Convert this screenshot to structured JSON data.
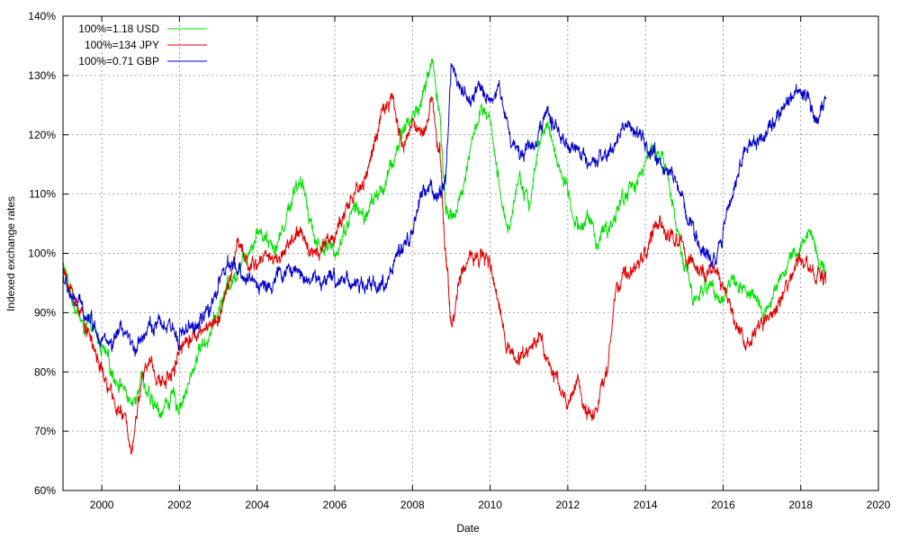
{
  "chart_data": {
    "type": "line",
    "xlabel": "Date",
    "ylabel": "Indexed exchange rates",
    "xlim": [
      1999.0,
      2020.0
    ],
    "ylim": [
      60,
      140
    ],
    "x_ticks": [
      2000,
      2002,
      2004,
      2006,
      2008,
      2010,
      2012,
      2014,
      2016,
      2018,
      2020
    ],
    "x_tick_labels": [
      "2000",
      "2002",
      "2004",
      "2006",
      "2008",
      "2010",
      "2012",
      "2014",
      "2016",
      "2018",
      "2020"
    ],
    "y_ticks": [
      60,
      70,
      80,
      90,
      100,
      110,
      120,
      130,
      140
    ],
    "y_tick_labels": [
      "60%",
      "70%",
      "80%",
      "90%",
      "100%",
      "110%",
      "120%",
      "130%",
      "140%"
    ],
    "grid": true,
    "legend_position": "top-left",
    "series": [
      {
        "name": "100%=1.18 USD",
        "color": "#00e000",
        "x": [
          1999.0,
          1999.25,
          1999.5,
          1999.75,
          2000.0,
          2000.25,
          2000.5,
          2000.8,
          2001.0,
          2001.25,
          2001.5,
          2001.8,
          2002.0,
          2002.25,
          2002.5,
          2002.75,
          2003.0,
          2003.25,
          2003.5,
          2003.75,
          2004.0,
          2004.25,
          2004.5,
          2004.75,
          2005.0,
          2005.25,
          2005.5,
          2005.75,
          2006.0,
          2006.25,
          2006.5,
          2006.75,
          2007.0,
          2007.25,
          2007.5,
          2007.75,
          2008.0,
          2008.25,
          2008.5,
          2008.7,
          2008.85,
          2009.0,
          2009.25,
          2009.5,
          2009.75,
          2010.0,
          2010.25,
          2010.5,
          2010.75,
          2011.0,
          2011.25,
          2011.5,
          2011.75,
          2012.0,
          2012.25,
          2012.5,
          2012.75,
          2013.0,
          2013.25,
          2013.5,
          2013.75,
          2014.0,
          2014.25,
          2014.5,
          2014.75,
          2015.0,
          2015.25,
          2015.5,
          2015.75,
          2016.0,
          2016.25,
          2016.5,
          2016.75,
          2017.0,
          2017.25,
          2017.5,
          2017.75,
          2018.0,
          2018.25,
          2018.5,
          2018.65
        ],
        "values": [
          98,
          92,
          88,
          87,
          84,
          80,
          78,
          74,
          80,
          75,
          73,
          76,
          74,
          78,
          84,
          86,
          90,
          95,
          97,
          100,
          104,
          103,
          101,
          106,
          112,
          110,
          102,
          101,
          100,
          104,
          108,
          106,
          109,
          111,
          115,
          121,
          123,
          126,
          133,
          124,
          108,
          106,
          110,
          118,
          124,
          122,
          110,
          104,
          114,
          108,
          118,
          122,
          115,
          110,
          104,
          107,
          101,
          104,
          107,
          110,
          112,
          115,
          118,
          115,
          107,
          98,
          92,
          94,
          95,
          92,
          96,
          94,
          93,
          90,
          92,
          96,
          99,
          101,
          104,
          98,
          97
        ]
      },
      {
        "name": "100%=134 JPY",
        "color": "#e00000",
        "x": [
          1999.0,
          1999.25,
          1999.5,
          1999.75,
          2000.0,
          2000.25,
          2000.5,
          2000.8,
          2001.0,
          2001.25,
          2001.5,
          2001.8,
          2002.0,
          2002.25,
          2002.5,
          2002.75,
          2003.0,
          2003.25,
          2003.5,
          2003.75,
          2004.0,
          2004.25,
          2004.5,
          2004.75,
          2005.0,
          2005.25,
          2005.5,
          2005.75,
          2006.0,
          2006.25,
          2006.5,
          2006.75,
          2007.0,
          2007.25,
          2007.5,
          2007.75,
          2008.0,
          2008.25,
          2008.5,
          2008.7,
          2008.85,
          2009.0,
          2009.25,
          2009.5,
          2009.75,
          2010.0,
          2010.25,
          2010.5,
          2010.75,
          2011.0,
          2011.25,
          2011.5,
          2011.75,
          2012.0,
          2012.25,
          2012.5,
          2012.75,
          2013.0,
          2013.25,
          2013.5,
          2013.75,
          2014.0,
          2014.25,
          2014.5,
          2014.75,
          2015.0,
          2015.25,
          2015.5,
          2015.75,
          2016.0,
          2016.25,
          2016.5,
          2016.75,
          2017.0,
          2017.25,
          2017.5,
          2017.75,
          2018.0,
          2018.25,
          2018.5,
          2018.65
        ],
        "values": [
          97,
          93,
          90,
          85,
          80,
          76,
          73,
          68,
          78,
          82,
          78,
          80,
          84,
          86,
          86,
          88,
          89,
          94,
          102,
          98,
          98,
          100,
          99,
          101,
          103,
          102,
          100,
          102,
          103,
          106,
          110,
          112,
          118,
          124,
          126,
          118,
          122,
          120,
          126,
          118,
          100,
          88,
          96,
          100,
          100,
          98,
          90,
          84,
          82,
          84,
          86,
          82,
          78,
          74,
          79,
          73,
          74,
          80,
          94,
          96,
          98,
          100,
          105,
          104,
          102,
          101,
          98,
          96,
          97,
          94,
          90,
          86,
          86,
          88,
          89,
          92,
          96,
          99,
          98,
          96,
          95
        ]
      },
      {
        "name": "100%=0.71 GBP",
        "color": "#0000cc",
        "x": [
          1999.0,
          1999.25,
          1999.5,
          1999.75,
          2000.0,
          2000.25,
          2000.5,
          2000.8,
          2001.0,
          2001.25,
          2001.5,
          2001.8,
          2002.0,
          2002.25,
          2002.5,
          2002.75,
          2003.0,
          2003.25,
          2003.5,
          2003.75,
          2004.0,
          2004.25,
          2004.5,
          2004.75,
          2005.0,
          2005.25,
          2005.5,
          2005.75,
          2006.0,
          2006.25,
          2006.5,
          2006.75,
          2007.0,
          2007.25,
          2007.5,
          2007.75,
          2008.0,
          2008.25,
          2008.5,
          2008.7,
          2008.85,
          2009.0,
          2009.25,
          2009.5,
          2009.75,
          2010.0,
          2010.25,
          2010.5,
          2010.75,
          2011.0,
          2011.25,
          2011.5,
          2011.75,
          2012.0,
          2012.25,
          2012.5,
          2012.75,
          2013.0,
          2013.25,
          2013.5,
          2013.75,
          2014.0,
          2014.25,
          2014.5,
          2014.75,
          2015.0,
          2015.25,
          2015.5,
          2015.75,
          2016.0,
          2016.25,
          2016.5,
          2016.75,
          2017.0,
          2017.25,
          2017.5,
          2017.75,
          2018.0,
          2018.25,
          2018.5,
          2018.65
        ],
        "values": [
          96,
          92,
          91,
          89,
          86,
          84,
          87,
          84,
          86,
          88,
          88,
          87,
          86,
          87,
          88,
          90,
          95,
          98,
          97,
          96,
          95,
          94,
          96,
          97,
          97,
          96,
          96,
          95,
          96,
          96,
          95,
          94,
          95,
          95,
          98,
          100,
          104,
          110,
          111,
          110,
          112,
          132,
          128,
          125,
          128,
          126,
          128,
          120,
          117,
          118,
          120,
          124,
          121,
          117,
          118,
          114,
          115,
          116,
          119,
          122,
          120,
          118,
          116,
          114,
          113,
          108,
          104,
          100,
          99,
          104,
          110,
          117,
          118,
          120,
          121,
          124,
          126,
          127,
          125,
          124,
          126
        ]
      }
    ]
  }
}
